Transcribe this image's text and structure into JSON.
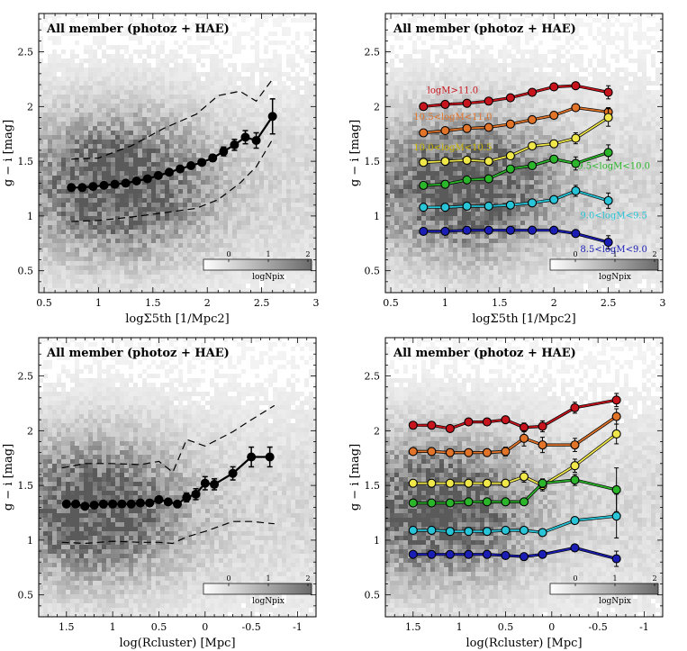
{
  "figure": {
    "panel_title": "All member (photoz + HAE)",
    "ylabel": "g − i [mag]",
    "xlabel_top": "logΣ5th [1/Mpc2]",
    "xlabel_bottom": "log(Rcluster) [Mpc]",
    "colorbar": {
      "label": "logNpix",
      "ticks": [
        "0",
        "1",
        "2"
      ]
    }
  },
  "chart_data": [
    {
      "type": "scatter",
      "panel": "top-left",
      "title": "All member (photoz + HAE)",
      "xlabel": "logΣ5th [1/Mpc2]",
      "ylabel": "g − i [mag]",
      "xlim": [
        0.45,
        3.0
      ],
      "ylim": [
        0.3,
        2.85
      ],
      "xticks": [
        0.5,
        1,
        1.5,
        2,
        2.5,
        3
      ],
      "yticks": [
        0.5,
        1,
        1.5,
        2,
        2.5
      ],
      "density_center": [
        1.2,
        1.3
      ],
      "median": {
        "x": [
          0.75,
          0.85,
          0.95,
          1.05,
          1.15,
          1.25,
          1.35,
          1.45,
          1.55,
          1.65,
          1.75,
          1.85,
          1.95,
          2.05,
          2.15,
          2.25,
          2.35,
          2.45,
          2.6
        ],
        "y": [
          1.26,
          1.26,
          1.27,
          1.28,
          1.29,
          1.3,
          1.32,
          1.34,
          1.37,
          1.4,
          1.43,
          1.46,
          1.49,
          1.53,
          1.59,
          1.65,
          1.72,
          1.69,
          1.91
        ],
        "yerr": [
          0,
          0,
          0,
          0,
          0,
          0,
          0,
          0,
          0,
          0,
          0,
          0,
          0.02,
          0.03,
          0.04,
          0.05,
          0.06,
          0.07,
          0.16
        ]
      },
      "upper_bound": {
        "x": [
          0.75,
          1.0,
          1.3,
          1.6,
          1.9,
          2.1,
          2.3,
          2.45,
          2.6
        ],
        "y": [
          1.52,
          1.53,
          1.64,
          1.8,
          1.93,
          2.1,
          2.14,
          2.05,
          2.25
        ]
      },
      "lower_bound": {
        "x": [
          0.75,
          1.0,
          1.3,
          1.6,
          1.9,
          2.1,
          2.3,
          2.45,
          2.6
        ],
        "y": [
          0.95,
          0.96,
          0.99,
          1.03,
          1.07,
          1.15,
          1.3,
          1.45,
          1.7
        ]
      }
    },
    {
      "type": "line",
      "panel": "top-right",
      "title": "All member (photoz + HAE)",
      "xlabel": "logΣ5th [1/Mpc2]",
      "ylabel": "g − i [mag]",
      "xlim": [
        0.45,
        3.0
      ],
      "ylim": [
        0.3,
        2.85
      ],
      "xticks": [
        0.5,
        1,
        1.5,
        2,
        2.5,
        3
      ],
      "yticks": [
        0.5,
        1,
        1.5,
        2,
        2.5
      ],
      "x": [
        0.8,
        1.0,
        1.2,
        1.4,
        1.6,
        1.8,
        2.0,
        2.2,
        2.5
      ],
      "series": [
        {
          "name": "logM>11.0",
          "color": "#c8141c",
          "y": [
            2.0,
            2.02,
            2.03,
            2.05,
            2.08,
            2.13,
            2.18,
            2.19,
            2.13
          ],
          "yerr": [
            0,
            0,
            0,
            0,
            0,
            0,
            0,
            0,
            0.06
          ]
        },
        {
          "name": "10.5<logM<11.0",
          "color": "#e2742a",
          "y": [
            1.76,
            1.78,
            1.8,
            1.81,
            1.84,
            1.88,
            1.92,
            1.99,
            1.95
          ],
          "yerr": [
            0,
            0,
            0,
            0,
            0,
            0,
            0,
            0,
            0.04
          ]
        },
        {
          "name": "10.0<logM<10.5",
          "color": "#f0e84a",
          "y": [
            1.49,
            1.5,
            1.51,
            1.5,
            1.55,
            1.64,
            1.66,
            1.71,
            1.9
          ],
          "yerr": [
            0,
            0,
            0,
            0,
            0,
            0,
            0,
            0.05,
            0.08
          ]
        },
        {
          "name": "9.5<logM<10.0",
          "color": "#2ab52a",
          "y": [
            1.28,
            1.29,
            1.33,
            1.34,
            1.43,
            1.46,
            1.52,
            1.48,
            1.58
          ],
          "yerr": [
            0,
            0,
            0,
            0,
            0,
            0,
            0,
            0.06,
            0.07
          ]
        },
        {
          "name": "9.0<logM<9.5",
          "color": "#28c4d8",
          "y": [
            1.08,
            1.08,
            1.09,
            1.09,
            1.1,
            1.12,
            1.15,
            1.23,
            1.14
          ],
          "yerr": [
            0,
            0,
            0,
            0,
            0,
            0,
            0,
            0.05,
            0.07
          ]
        },
        {
          "name": "8.5<logM<9.0",
          "color": "#1a1eb4",
          "y": [
            0.86,
            0.86,
            0.87,
            0.87,
            0.87,
            0.87,
            0.87,
            0.84,
            0.76
          ],
          "yerr": [
            0,
            0,
            0,
            0,
            0,
            0,
            0,
            0,
            0.06
          ]
        }
      ]
    },
    {
      "type": "scatter",
      "panel": "bottom-left",
      "title": "All member (photoz + HAE)",
      "xlabel": "log(Rcluster) [Mpc]",
      "ylabel": "g − i [mag]",
      "xlim": [
        1.8,
        -1.2
      ],
      "ylim": [
        0.3,
        2.85
      ],
      "xticks": [
        1.5,
        1,
        0.5,
        0,
        -0.5,
        -1
      ],
      "yticks": [
        0.5,
        1,
        1.5,
        2,
        2.5
      ],
      "density_center": [
        1.2,
        1.3
      ],
      "median": {
        "x": [
          1.5,
          1.4,
          1.3,
          1.2,
          1.1,
          1.0,
          0.9,
          0.8,
          0.7,
          0.6,
          0.5,
          0.4,
          0.3,
          0.2,
          0.1,
          0.0,
          -0.1,
          -0.3,
          -0.5,
          -0.7
        ],
        "y": [
          1.33,
          1.33,
          1.31,
          1.32,
          1.33,
          1.33,
          1.33,
          1.33,
          1.34,
          1.34,
          1.37,
          1.35,
          1.33,
          1.39,
          1.42,
          1.52,
          1.51,
          1.61,
          1.76,
          1.76
        ],
        "yerr": [
          0,
          0,
          0,
          0,
          0,
          0,
          0,
          0,
          0,
          0,
          0,
          0,
          0,
          0.04,
          0.05,
          0.06,
          0.05,
          0.06,
          0.09,
          0.09
        ]
      },
      "upper_bound": {
        "x": [
          1.55,
          1.3,
          1.0,
          0.7,
          0.5,
          0.35,
          0.2,
          0.0,
          -0.3,
          -0.5,
          -0.75
        ],
        "y": [
          1.66,
          1.7,
          1.7,
          1.69,
          1.72,
          1.62,
          1.92,
          1.86,
          1.99,
          2.1,
          2.23
        ]
      },
      "lower_bound": {
        "x": [
          1.55,
          1.3,
          1.0,
          0.7,
          0.5,
          0.35,
          0.2,
          0.0,
          -0.3,
          -0.5,
          -0.75
        ],
        "y": [
          0.98,
          0.97,
          0.99,
          0.98,
          0.98,
          0.97,
          1.03,
          1.08,
          1.17,
          1.17,
          1.15
        ]
      }
    },
    {
      "type": "line",
      "panel": "bottom-right",
      "title": "All member (photoz + HAE)",
      "xlabel": "log(Rcluster) [Mpc]",
      "ylabel": "g − i [mag]",
      "xlim": [
        1.8,
        -1.2
      ],
      "ylim": [
        0.3,
        2.85
      ],
      "xticks": [
        1.5,
        1,
        0.5,
        0,
        -0.5,
        -1
      ],
      "yticks": [
        0.5,
        1,
        1.5,
        2,
        2.5
      ],
      "x": [
        1.5,
        1.3,
        1.1,
        0.9,
        0.7,
        0.5,
        0.3,
        0.1,
        -0.25,
        -0.7
      ],
      "series": [
        {
          "name": "logM>11.0",
          "color": "#c8141c",
          "y": [
            2.05,
            2.05,
            2.02,
            2.08,
            2.08,
            2.1,
            2.03,
            2.04,
            2.21,
            2.28
          ],
          "yerr": [
            0,
            0,
            0,
            0,
            0,
            0.03,
            0.04,
            0.05,
            0.05,
            0.06
          ]
        },
        {
          "name": "10.5<logM<11.0",
          "color": "#e2742a",
          "y": [
            1.81,
            1.81,
            1.8,
            1.8,
            1.8,
            1.81,
            1.93,
            1.87,
            1.87,
            2.13
          ],
          "yerr": [
            0,
            0,
            0,
            0,
            0,
            0.04,
            0.07,
            0.07,
            0.06,
            0.07
          ]
        },
        {
          "name": "10.0<logM<10.5",
          "color": "#f0e84a",
          "y": [
            1.52,
            1.52,
            1.52,
            1.52,
            1.52,
            1.52,
            1.58,
            1.5,
            1.68,
            1.97
          ],
          "yerr": [
            0,
            0,
            0,
            0,
            0,
            0,
            0.05,
            0.05,
            0.06,
            0.09
          ]
        },
        {
          "name": "9.5<logM<10.0",
          "color": "#2ab52a",
          "y": [
            1.34,
            1.34,
            1.34,
            1.35,
            1.35,
            1.35,
            1.35,
            1.52,
            1.55,
            1.46
          ],
          "yerr": [
            0,
            0,
            0,
            0,
            0,
            0,
            0.03,
            0.04,
            0.05,
            0.2
          ]
        },
        {
          "name": "9.0<logM<9.5",
          "color": "#28c4d8",
          "y": [
            1.09,
            1.09,
            1.08,
            1.08,
            1.08,
            1.09,
            1.09,
            1.07,
            1.18,
            1.22
          ],
          "yerr": [
            0,
            0,
            0,
            0,
            0,
            0,
            0,
            0.03,
            0.03,
            0.2
          ]
        },
        {
          "name": "8.5<logM<9.0",
          "color": "#1a1eb4",
          "y": [
            0.87,
            0.87,
            0.87,
            0.87,
            0.87,
            0.86,
            0.85,
            0.87,
            0.93,
            0.83
          ],
          "yerr": [
            0,
            0,
            0,
            0,
            0,
            0,
            0,
            0,
            0,
            0.07
          ]
        }
      ]
    }
  ]
}
